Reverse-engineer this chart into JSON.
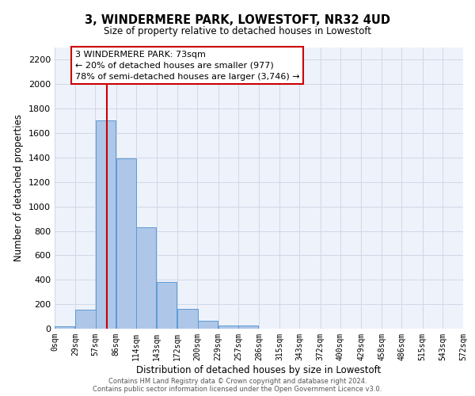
{
  "title": "3, WINDERMERE PARK, LOWESTOFT, NR32 4UD",
  "subtitle": "Size of property relative to detached houses in Lowestoft",
  "xlabel": "Distribution of detached houses by size in Lowestoft",
  "ylabel": "Number of detached properties",
  "bar_left_edges": [
    0,
    29,
    57,
    86,
    114,
    143,
    172,
    200,
    229,
    257,
    286,
    315,
    343,
    372,
    400,
    429,
    458,
    486,
    515,
    543
  ],
  "bar_heights": [
    20,
    157,
    1706,
    1393,
    829,
    383,
    163,
    66,
    27,
    27,
    0,
    0,
    0,
    0,
    0,
    0,
    0,
    0,
    0,
    0
  ],
  "bar_width": 28.5,
  "bar_color": "#aec6e8",
  "bar_edge_color": "#5b9bd5",
  "vline_x": 73,
  "vline_color": "#cc0000",
  "annotation_title": "3 WINDERMERE PARK: 73sqm",
  "annotation_line1": "← 20% of detached houses are smaller (977)",
  "annotation_line2": "78% of semi-detached houses are larger (3,746) →",
  "box_edge_color": "#cc0000",
  "xlim": [
    0,
    572
  ],
  "ylim": [
    0,
    2300
  ],
  "yticks": [
    0,
    200,
    400,
    600,
    800,
    1000,
    1200,
    1400,
    1600,
    1800,
    2000,
    2200
  ],
  "xtick_labels": [
    "0sqm",
    "29sqm",
    "57sqm",
    "86sqm",
    "114sqm",
    "143sqm",
    "172sqm",
    "200sqm",
    "229sqm",
    "257sqm",
    "286sqm",
    "315sqm",
    "343sqm",
    "372sqm",
    "400sqm",
    "429sqm",
    "458sqm",
    "486sqm",
    "515sqm",
    "543sqm",
    "572sqm"
  ],
  "xtick_positions": [
    0,
    29,
    57,
    86,
    114,
    143,
    172,
    200,
    229,
    257,
    286,
    315,
    343,
    372,
    400,
    429,
    458,
    486,
    515,
    543,
    572
  ],
  "grid_color": "#d0d8e8",
  "bg_color": "#eef2fa",
  "footer_line1": "Contains HM Land Registry data © Crown copyright and database right 2024.",
  "footer_line2": "Contains public sector information licensed under the Open Government Licence v3.0."
}
